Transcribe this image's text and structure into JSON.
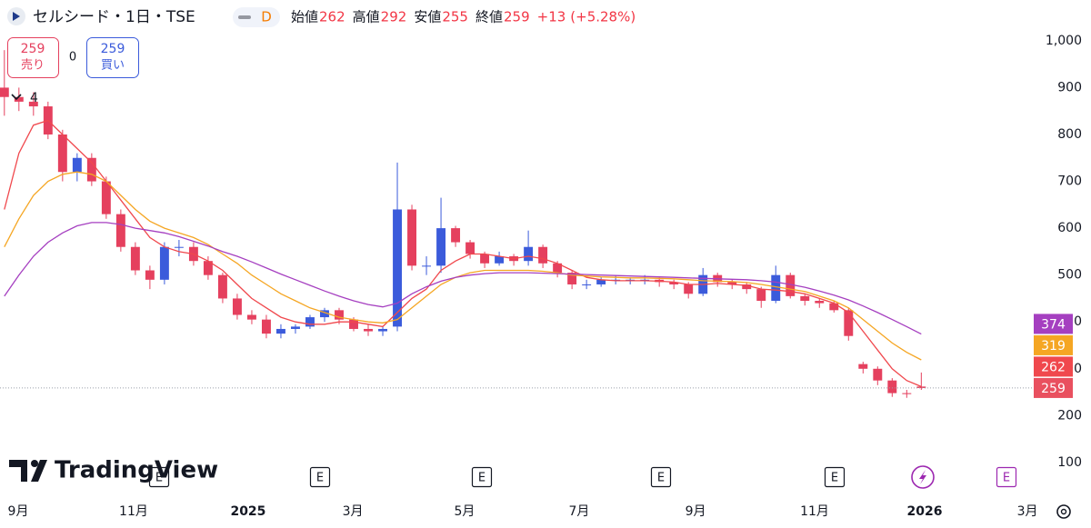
{
  "header": {
    "symbol_title": "セルシード・1日・TSE",
    "interval_badge": "D",
    "ohlc": [
      {
        "label": "始値",
        "value": 262
      },
      {
        "label": "高値",
        "value": 292
      },
      {
        "label": "安値",
        "value": 255
      },
      {
        "label": "終値",
        "value": 259
      }
    ],
    "change": "+13",
    "change_percent": "(+5.28%)"
  },
  "trade_buttons": {
    "sell_price": 259,
    "sell_label": "売り",
    "spread": 0,
    "buy_price": 259,
    "buy_label": "買い"
  },
  "indicators_count": 4,
  "watermark": "TradingView",
  "event_markers": [
    "E",
    "E",
    "E",
    "E",
    "E",
    "E"
  ],
  "chart_data": {
    "type": "candlestick",
    "categories": [
      null,
      null,
      null,
      null,
      null,
      null,
      null,
      null,
      null,
      null,
      null,
      null,
      null,
      null,
      null,
      null,
      null,
      null,
      null,
      null,
      null,
      null,
      null,
      null,
      null,
      null,
      null,
      null,
      null,
      null,
      null,
      null,
      null,
      null,
      null,
      null,
      null,
      null,
      null,
      null,
      null,
      null,
      null,
      null,
      null,
      null,
      null,
      null,
      null,
      null,
      null,
      null,
      null,
      null,
      null,
      null,
      null,
      null,
      null,
      null,
      null,
      null,
      null,
      null
    ],
    "open": [
      900,
      880,
      870,
      860,
      800,
      720,
      750,
      700,
      630,
      560,
      510,
      490,
      560,
      560,
      530,
      500,
      450,
      415,
      405,
      375,
      385,
      390,
      410,
      425,
      405,
      385,
      380,
      390,
      640,
      520,
      520,
      600,
      570,
      545,
      525,
      540,
      530,
      560,
      525,
      505,
      480,
      480,
      490,
      490,
      490,
      490,
      485,
      480,
      460,
      500,
      485,
      480,
      470,
      445,
      500,
      455,
      445,
      440,
      425,
      310,
      300,
      275,
      248,
      262
    ],
    "high": [
      980,
      900,
      890,
      870,
      810,
      760,
      760,
      710,
      640,
      570,
      520,
      570,
      575,
      570,
      540,
      505,
      460,
      425,
      415,
      395,
      395,
      415,
      430,
      430,
      410,
      395,
      390,
      740,
      650,
      540,
      665,
      605,
      575,
      550,
      550,
      545,
      595,
      565,
      530,
      510,
      490,
      495,
      500,
      495,
      500,
      495,
      490,
      485,
      515,
      505,
      490,
      485,
      475,
      520,
      505,
      460,
      450,
      445,
      430,
      315,
      305,
      280,
      255,
      292
    ],
    "low": [
      840,
      850,
      840,
      790,
      700,
      700,
      690,
      620,
      550,
      500,
      470,
      480,
      540,
      520,
      490,
      440,
      405,
      395,
      365,
      365,
      375,
      385,
      400,
      395,
      380,
      370,
      370,
      380,
      510,
      500,
      505,
      560,
      535,
      515,
      520,
      520,
      520,
      515,
      495,
      470,
      470,
      475,
      480,
      480,
      480,
      475,
      470,
      450,
      455,
      475,
      470,
      460,
      430,
      440,
      450,
      435,
      430,
      420,
      360,
      290,
      265,
      240,
      238,
      255
    ],
    "close": [
      880,
      870,
      860,
      800,
      720,
      750,
      700,
      630,
      560,
      510,
      490,
      560,
      560,
      530,
      500,
      450,
      415,
      405,
      375,
      385,
      390,
      410,
      425,
      405,
      385,
      380,
      385,
      640,
      520,
      520,
      600,
      570,
      545,
      525,
      540,
      530,
      560,
      525,
      505,
      480,
      480,
      490,
      490,
      490,
      490,
      485,
      480,
      460,
      500,
      485,
      480,
      470,
      445,
      500,
      455,
      445,
      440,
      425,
      370,
      300,
      275,
      248,
      246,
      259
    ],
    "up_color": "#3b5bdb",
    "down_color": "#e5405e",
    "last_price_color": "#e9505f",
    "series": [
      {
        "color": "#f0484d",
        "values": [
          640,
          760,
          820,
          830,
          800,
          770,
          740,
          700,
          660,
          620,
          580,
          560,
          550,
          545,
          530,
          510,
          480,
          450,
          430,
          410,
          400,
          395,
          395,
          400,
          400,
          395,
          390,
          420,
          450,
          470,
          510,
          530,
          545,
          545,
          540,
          535,
          540,
          535,
          525,
          510,
          495,
          490,
          488,
          488,
          488,
          487,
          485,
          480,
          480,
          482,
          480,
          478,
          470,
          468,
          465,
          460,
          450,
          440,
          420,
          380,
          340,
          300,
          275,
          262
        ]
      },
      {
        "color": "#f5a623",
        "values": [
          560,
          620,
          670,
          700,
          715,
          720,
          715,
          700,
          670,
          640,
          615,
          600,
          590,
          580,
          565,
          545,
          525,
          500,
          480,
          460,
          445,
          430,
          420,
          410,
          405,
          400,
          398,
          405,
          430,
          455,
          480,
          495,
          505,
          510,
          510,
          510,
          510,
          508,
          505,
          500,
          498,
          496,
          495,
          494,
          494,
          493,
          492,
          490,
          488,
          487,
          486,
          484,
          480,
          475,
          470,
          465,
          455,
          445,
          430,
          405,
          380,
          355,
          335,
          319
        ]
      },
      {
        "color": "#a53fc0",
        "values": [
          455,
          500,
          540,
          570,
          590,
          605,
          612,
          612,
          608,
          600,
          595,
          590,
          582,
          572,
          562,
          550,
          540,
          528,
          515,
          502,
          490,
          478,
          466,
          455,
          445,
          437,
          432,
          440,
          460,
          475,
          487,
          495,
          500,
          503,
          505,
          505,
          505,
          504,
          503,
          502,
          501,
          500,
          499,
          498,
          497,
          496,
          495,
          494,
          493,
          492,
          491,
          490,
          488,
          485,
          480,
          474,
          466,
          457,
          447,
          434,
          420,
          405,
          390,
          374
        ]
      }
    ],
    "ylim": [
      30,
      1087
    ],
    "yticks": [
      100,
      200,
      300,
      400,
      500,
      600,
      700,
      800,
      900,
      {
        "value": 1000,
        "label": "1,000"
      }
    ],
    "xlim": [
      -0.3,
      70.6
    ],
    "xticks": [
      {
        "value": 0.95,
        "label": "9月"
      },
      {
        "value": 8.88,
        "label": "11月"
      },
      {
        "value": 16.75,
        "label": "2025"
      },
      {
        "value": 23.94,
        "label": "3月"
      },
      {
        "value": 31.62,
        "label": "5月"
      },
      {
        "value": 39.49,
        "label": "7月"
      },
      {
        "value": 47.49,
        "label": "9月"
      },
      {
        "value": 55.67,
        "label": "11月"
      },
      {
        "value": 63.23,
        "label": "2026"
      },
      {
        "value": 70.29,
        "label": "3月"
      }
    ]
  }
}
